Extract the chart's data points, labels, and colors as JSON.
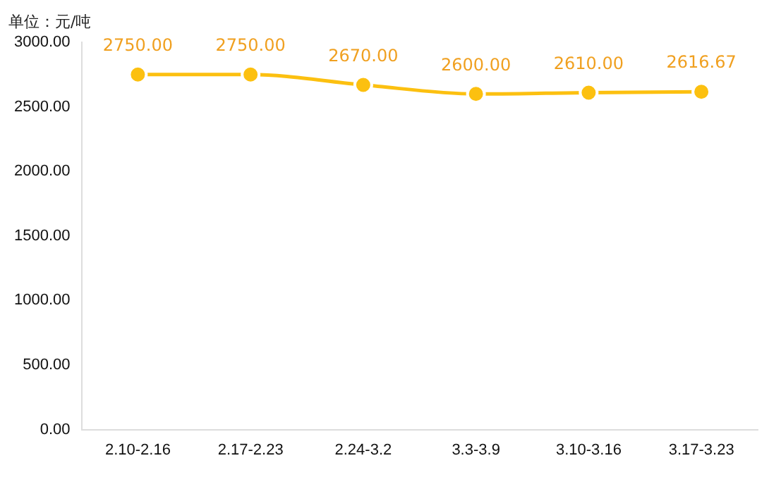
{
  "chart_data": {
    "type": "line",
    "ylabel": "单位：元/吨",
    "categories": [
      "2.10-2.16",
      "2.17-2.23",
      "2.24-3.2",
      "3.3-3.9",
      "3.10-3.16",
      "3.17-3.23"
    ],
    "series": [
      {
        "color": "#fcc010",
        "values": [
          2750,
          2750,
          2670,
          2600,
          2610,
          2616.67
        ],
        "value_labels": [
          "2750.00",
          "2750.00",
          "2670.00",
          "2600.00",
          "2610.00",
          "2616.67"
        ]
      }
    ],
    "ylim": [
      0,
      3000
    ],
    "yticks": [
      {
        "value": 0,
        "label": "0.00"
      },
      {
        "value": 500,
        "label": "500.00"
      },
      {
        "value": 1000,
        "label": "1000.00"
      },
      {
        "value": 1500,
        "label": "1500.00"
      },
      {
        "value": 2000,
        "label": "2000.00"
      },
      {
        "value": 2500,
        "label": "2500.00"
      },
      {
        "value": 3000,
        "label": "3000.00"
      }
    ],
    "grid": false,
    "legend": false,
    "marker": "circle",
    "line_style": "solid"
  }
}
